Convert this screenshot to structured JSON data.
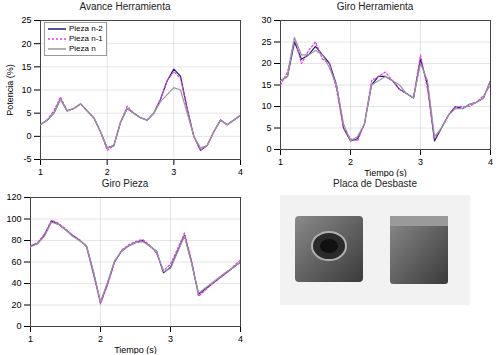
{
  "chart_data": [
    {
      "type": "line",
      "title": "Avance Herramienta",
      "ylabel": "Potencia (%)",
      "x": [
        1.0,
        1.1,
        1.2,
        1.3,
        1.4,
        1.5,
        1.6,
        1.7,
        1.8,
        1.9,
        2.0,
        2.1,
        2.2,
        2.3,
        2.4,
        2.5,
        2.6,
        2.7,
        2.8,
        2.9,
        3.0,
        3.1,
        3.2,
        3.3,
        3.4,
        3.5,
        3.6,
        3.7,
        3.8,
        3.9,
        4.0
      ],
      "series": [
        {
          "name": "Pieza n-2",
          "color": "#1a1a80",
          "line_style": "solid",
          "values": [
            2.5,
            3.5,
            5,
            8,
            5.5,
            6,
            7,
            5.5,
            4,
            1,
            -2.5,
            -2,
            3,
            6,
            5,
            4,
            3.5,
            5,
            8,
            12,
            14.5,
            13,
            6,
            0,
            -3,
            -2,
            1,
            3.5,
            2.5,
            3.5,
            4.5
          ]
        },
        {
          "name": "Pieza n-1",
          "color": "#e040e0",
          "line_style": "dotted",
          "values": [
            2.5,
            3.5,
            5.5,
            8.5,
            5.5,
            6,
            7,
            5.5,
            4,
            1,
            -3,
            -2,
            3,
            6.5,
            5,
            4,
            3.5,
            5,
            8,
            12,
            14,
            12.5,
            6,
            0,
            -3,
            -2,
            1,
            3.5,
            2.5,
            3.5,
            4.5
          ]
        },
        {
          "name": "Pieza n",
          "color": "#999999",
          "line_style": "solid",
          "values": [
            2.5,
            3.5,
            5,
            8,
            5.5,
            6,
            7,
            5.5,
            4,
            1,
            -2.5,
            -2,
            3,
            6,
            5,
            4,
            3.5,
            5,
            7.5,
            9,
            10.5,
            10,
            5,
            0,
            -2.5,
            -2,
            1,
            3.5,
            2.5,
            3.5,
            4.5
          ]
        }
      ],
      "xlim": [
        1,
        4
      ],
      "xticks": [
        1,
        2,
        3,
        4
      ],
      "ylim": [
        -5,
        25
      ],
      "yticks": [
        -5,
        0,
        5,
        10,
        15,
        20,
        25
      ],
      "grid": true,
      "legend": "upper left"
    },
    {
      "type": "line",
      "title": "Giro Herramienta",
      "xlabel": "Tiempo (s)",
      "x": [
        1.0,
        1.1,
        1.2,
        1.3,
        1.4,
        1.5,
        1.6,
        1.7,
        1.8,
        1.9,
        2.0,
        2.1,
        2.2,
        2.3,
        2.4,
        2.5,
        2.6,
        2.7,
        2.8,
        2.9,
        3.0,
        3.1,
        3.2,
        3.3,
        3.4,
        3.5,
        3.6,
        3.7,
        3.8,
        3.9,
        4.0
      ],
      "series": [
        {
          "name": "Pieza n-2",
          "color": "#1a1a80",
          "line_style": "solid",
          "values": [
            16,
            17,
            25,
            21,
            22,
            24,
            22,
            20,
            15,
            5,
            2,
            2.5,
            6,
            15,
            17,
            17,
            16,
            14,
            13,
            12,
            21,
            15,
            2,
            5,
            8,
            10,
            9.5,
            10.5,
            11,
            12,
            16
          ]
        },
        {
          "name": "Pieza n-1",
          "color": "#e040e0",
          "line_style": "dotted",
          "values": [
            15,
            18,
            26,
            20,
            23,
            25,
            21,
            20,
            14,
            5,
            2.5,
            2,
            6,
            16,
            17,
            18,
            16,
            14,
            13,
            12,
            22,
            14,
            2.5,
            5,
            8,
            10,
            10,
            10,
            11,
            12.5,
            15
          ]
        },
        {
          "name": "Pieza n",
          "color": "#999999",
          "line_style": "solid",
          "values": [
            16,
            17,
            26,
            22,
            22,
            23,
            22,
            19,
            15,
            6,
            2,
            3,
            6,
            15,
            16,
            17,
            16,
            15,
            13,
            12,
            20,
            16,
            3,
            5,
            8,
            9.5,
            9.5,
            10.5,
            11,
            12,
            16
          ]
        }
      ],
      "xlim": [
        1,
        4
      ],
      "xticks": [
        1,
        2,
        3,
        4
      ],
      "ylim": [
        0,
        30
      ],
      "yticks": [
        0,
        5,
        10,
        15,
        20,
        25,
        30
      ],
      "grid": true
    },
    {
      "type": "line",
      "title": "Giro Pieza",
      "xlabel": "Tiempo (s)",
      "x": [
        1.0,
        1.1,
        1.2,
        1.3,
        1.4,
        1.5,
        1.6,
        1.7,
        1.8,
        1.9,
        2.0,
        2.1,
        2.2,
        2.3,
        2.4,
        2.5,
        2.6,
        2.7,
        2.8,
        2.9,
        3.0,
        3.1,
        3.2,
        3.3,
        3.4,
        3.5,
        3.6,
        3.7,
        3.8,
        3.9,
        4.0
      ],
      "series": [
        {
          "name": "Pieza n-2",
          "color": "#1a1a80",
          "line_style": "solid",
          "values": [
            75,
            77,
            85,
            98,
            95,
            90,
            85,
            80,
            75,
            50,
            22,
            40,
            60,
            70,
            75,
            78,
            80,
            75,
            70,
            50,
            55,
            70,
            85,
            60,
            30,
            35,
            40,
            45,
            50,
            55,
            60
          ]
        },
        {
          "name": "Pieza n-1",
          "color": "#e040e0",
          "line_style": "dotted",
          "values": [
            75,
            78,
            86,
            99,
            96,
            91,
            85,
            81,
            74,
            48,
            21,
            38,
            60,
            71,
            76,
            79,
            81,
            76,
            68,
            52,
            58,
            72,
            87,
            62,
            28,
            34,
            40,
            45,
            50,
            56,
            62
          ]
        },
        {
          "name": "Pieza n",
          "color": "#999999",
          "line_style": "solid",
          "values": [
            74,
            77,
            84,
            97,
            95,
            90,
            84,
            80,
            75,
            51,
            23,
            41,
            61,
            70,
            75,
            78,
            79,
            75,
            70,
            51,
            54,
            69,
            84,
            59,
            31,
            36,
            41,
            46,
            51,
            55,
            60
          ]
        }
      ],
      "xlim": [
        1,
        4
      ],
      "xticks": [
        1,
        2,
        3,
        4
      ],
      "ylim": [
        0,
        120
      ],
      "yticks": [
        0,
        20,
        40,
        60,
        80,
        100,
        120
      ],
      "grid": true
    }
  ],
  "image": {
    "title": "Placa de Desbaste"
  }
}
